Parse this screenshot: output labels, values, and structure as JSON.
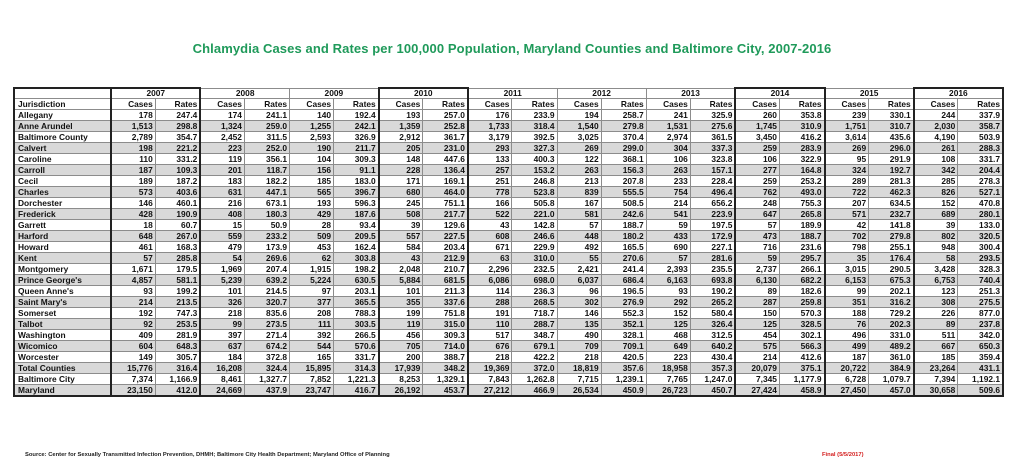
{
  "title": "Chlamydia Cases and Rates per 100,000 Population, Maryland Counties and Baltimore City, 2007-2016",
  "headers": {
    "jurisdiction": "Jurisdiction",
    "cases": "Cases",
    "rates": "Rates",
    "years": [
      "2007",
      "2008",
      "2009",
      "2010",
      "2011",
      "2012",
      "2013",
      "2014",
      "2015",
      "2016"
    ]
  },
  "rows": [
    {
      "name": "Allegany",
      "values": [
        "178",
        "247.4",
        "174",
        "241.1",
        "140",
        "192.4",
        "193",
        "257.0",
        "176",
        "233.9",
        "194",
        "258.7",
        "241",
        "325.9",
        "260",
        "353.8",
        "239",
        "330.1",
        "244",
        "337.9"
      ]
    },
    {
      "name": "Anne Arundel",
      "values": [
        "1,513",
        "298.8",
        "1,324",
        "259.0",
        "1,255",
        "242.1",
        "1,359",
        "252.8",
        "1,733",
        "318.4",
        "1,540",
        "279.8",
        "1,531",
        "275.6",
        "1,745",
        "310.9",
        "1,751",
        "310.7",
        "2,030",
        "358.7"
      ]
    },
    {
      "name": "Baltimore County",
      "values": [
        "2,789",
        "354.7",
        "2,452",
        "311.5",
        "2,593",
        "326.9",
        "2,912",
        "361.7",
        "3,179",
        "392.5",
        "3,025",
        "370.4",
        "2,974",
        "361.5",
        "3,450",
        "416.2",
        "3,614",
        "435.6",
        "4,190",
        "503.9"
      ]
    },
    {
      "name": "Calvert",
      "values": [
        "198",
        "221.2",
        "223",
        "252.0",
        "190",
        "211.7",
        "205",
        "231.0",
        "293",
        "327.3",
        "269",
        "299.0",
        "304",
        "337.3",
        "259",
        "283.9",
        "269",
        "296.0",
        "261",
        "288.3"
      ]
    },
    {
      "name": "Caroline",
      "values": [
        "110",
        "331.2",
        "119",
        "356.1",
        "104",
        "309.3",
        "148",
        "447.6",
        "133",
        "400.3",
        "122",
        "368.1",
        "106",
        "323.8",
        "106",
        "322.9",
        "95",
        "291.9",
        "108",
        "331.7"
      ]
    },
    {
      "name": "Carroll",
      "values": [
        "187",
        "109.3",
        "201",
        "118.7",
        "156",
        "91.1",
        "228",
        "136.4",
        "257",
        "153.2",
        "263",
        "156.3",
        "263",
        "157.1",
        "277",
        "164.8",
        "324",
        "192.7",
        "342",
        "204.4"
      ]
    },
    {
      "name": "Cecil",
      "values": [
        "189",
        "187.2",
        "183",
        "182.2",
        "185",
        "183.0",
        "171",
        "169.1",
        "251",
        "246.8",
        "213",
        "207.8",
        "233",
        "228.4",
        "259",
        "253.2",
        "289",
        "281.3",
        "285",
        "278.3"
      ]
    },
    {
      "name": "Charles",
      "values": [
        "573",
        "403.6",
        "631",
        "447.1",
        "565",
        "396.7",
        "680",
        "464.0",
        "778",
        "523.8",
        "839",
        "555.5",
        "754",
        "496.4",
        "762",
        "493.0",
        "722",
        "462.3",
        "826",
        "527.1"
      ]
    },
    {
      "name": "Dorchester",
      "values": [
        "146",
        "460.1",
        "216",
        "673.1",
        "193",
        "596.3",
        "245",
        "751.1",
        "166",
        "505.8",
        "167",
        "508.5",
        "214",
        "656.2",
        "248",
        "755.3",
        "207",
        "634.5",
        "152",
        "470.8"
      ]
    },
    {
      "name": "Frederick",
      "values": [
        "428",
        "190.9",
        "408",
        "180.3",
        "429",
        "187.6",
        "508",
        "217.7",
        "522",
        "221.0",
        "581",
        "242.6",
        "541",
        "223.9",
        "647",
        "265.8",
        "571",
        "232.7",
        "689",
        "280.1"
      ]
    },
    {
      "name": "Garrett",
      "values": [
        "18",
        "60.7",
        "15",
        "50.9",
        "28",
        "93.4",
        "39",
        "129.6",
        "43",
        "142.8",
        "57",
        "188.7",
        "59",
        "197.5",
        "57",
        "189.9",
        "42",
        "141.8",
        "39",
        "133.0"
      ]
    },
    {
      "name": "Harford",
      "values": [
        "648",
        "267.0",
        "559",
        "233.2",
        "509",
        "209.5",
        "557",
        "227.5",
        "608",
        "246.6",
        "448",
        "180.2",
        "433",
        "172.9",
        "473",
        "188.7",
        "702",
        "279.8",
        "802",
        "320.5"
      ]
    },
    {
      "name": "Howard",
      "values": [
        "461",
        "168.3",
        "479",
        "173.9",
        "453",
        "162.4",
        "584",
        "203.4",
        "671",
        "229.9",
        "492",
        "165.5",
        "690",
        "227.1",
        "716",
        "231.6",
        "798",
        "255.1",
        "948",
        "300.4"
      ]
    },
    {
      "name": "Kent",
      "values": [
        "57",
        "285.8",
        "54",
        "269.6",
        "62",
        "303.8",
        "43",
        "212.9",
        "63",
        "310.0",
        "55",
        "270.6",
        "57",
        "281.6",
        "59",
        "295.7",
        "35",
        "176.4",
        "58",
        "293.5"
      ]
    },
    {
      "name": "Montgomery",
      "values": [
        "1,671",
        "179.5",
        "1,969",
        "207.4",
        "1,915",
        "198.2",
        "2,048",
        "210.7",
        "2,296",
        "232.5",
        "2,421",
        "241.4",
        "2,393",
        "235.5",
        "2,737",
        "266.1",
        "3,015",
        "290.5",
        "3,428",
        "328.3"
      ]
    },
    {
      "name": "Prince George's",
      "values": [
        "4,857",
        "581.1",
        "5,239",
        "639.2",
        "5,224",
        "630.5",
        "5,884",
        "681.5",
        "6,086",
        "698.0",
        "6,037",
        "686.4",
        "6,163",
        "693.8",
        "6,130",
        "682.2",
        "6,153",
        "675.3",
        "6,753",
        "740.4"
      ]
    },
    {
      "name": "Queen Anne's",
      "values": [
        "93",
        "199.2",
        "101",
        "214.5",
        "97",
        "203.1",
        "101",
        "211.3",
        "114",
        "236.3",
        "96",
        "196.5",
        "93",
        "190.2",
        "89",
        "182.6",
        "99",
        "202.1",
        "123",
        "251.3"
      ]
    },
    {
      "name": "Saint Mary's",
      "values": [
        "214",
        "213.5",
        "326",
        "320.7",
        "377",
        "365.5",
        "355",
        "337.6",
        "288",
        "268.5",
        "302",
        "276.9",
        "292",
        "265.2",
        "287",
        "259.8",
        "351",
        "316.2",
        "308",
        "275.5"
      ]
    },
    {
      "name": "Somerset",
      "values": [
        "192",
        "747.3",
        "218",
        "835.6",
        "208",
        "788.3",
        "199",
        "751.8",
        "191",
        "718.7",
        "146",
        "552.3",
        "152",
        "580.4",
        "150",
        "570.3",
        "188",
        "729.2",
        "226",
        "877.0"
      ]
    },
    {
      "name": "Talbot",
      "values": [
        "92",
        "253.5",
        "99",
        "273.5",
        "111",
        "303.5",
        "119",
        "315.0",
        "110",
        "288.7",
        "135",
        "352.1",
        "125",
        "326.4",
        "125",
        "328.5",
        "76",
        "202.3",
        "89",
        "237.8"
      ]
    },
    {
      "name": "Washington",
      "values": [
        "409",
        "281.9",
        "397",
        "271.4",
        "392",
        "266.5",
        "456",
        "309.3",
        "517",
        "348.7",
        "490",
        "328.1",
        "468",
        "312.5",
        "454",
        "302.1",
        "496",
        "331.0",
        "511",
        "342.0"
      ]
    },
    {
      "name": "Wicomico",
      "values": [
        "604",
        "648.3",
        "637",
        "674.2",
        "544",
        "570.6",
        "705",
        "714.0",
        "676",
        "679.1",
        "709",
        "709.1",
        "649",
        "640.2",
        "575",
        "566.3",
        "499",
        "489.2",
        "667",
        "650.3"
      ]
    },
    {
      "name": "Worcester",
      "values": [
        "149",
        "305.7",
        "184",
        "372.8",
        "165",
        "331.7",
        "200",
        "388.7",
        "218",
        "422.2",
        "218",
        "420.5",
        "223",
        "430.4",
        "214",
        "412.6",
        "187",
        "361.0",
        "185",
        "359.4"
      ]
    }
  ],
  "totals": [
    {
      "name": "Total Counties",
      "values": [
        "15,776",
        "316.4",
        "16,208",
        "324.4",
        "15,895",
        "314.3",
        "17,939",
        "348.2",
        "19,369",
        "372.0",
        "18,819",
        "357.6",
        "18,958",
        "357.3",
        "20,079",
        "375.1",
        "20,722",
        "384.9",
        "23,264",
        "431.1"
      ]
    },
    {
      "name": "Baltimore City",
      "values": [
        "7,374",
        "1,166.9",
        "8,461",
        "1,327.7",
        "7,852",
        "1,221.3",
        "8,253",
        "1,329.1",
        "7,843",
        "1,262.8",
        "7,715",
        "1,239.1",
        "7,765",
        "1,247.0",
        "7,345",
        "1,177.9",
        "6,728",
        "1,079.7",
        "7,394",
        "1,192.1"
      ]
    },
    {
      "name": "Maryland",
      "values": [
        "23,150",
        "412.0",
        "24,669",
        "437.9",
        "23,747",
        "416.7",
        "26,192",
        "453.7",
        "27,212",
        "466.9",
        "26,534",
        "450.9",
        "26,723",
        "450.7",
        "27,424",
        "458.9",
        "27,450",
        "457.0",
        "30,658",
        "509.6"
      ]
    }
  ],
  "footer": {
    "source": "Source: Center for Sexually Transmitted Infection Prevention, DHMH; Baltimore City Health Department; Maryland Office of Planning",
    "final": "Final (5/5/2017)"
  },
  "colors": {
    "title": "#1f9a5a",
    "final": "#d42020",
    "shade": "#d9d9d9"
  }
}
